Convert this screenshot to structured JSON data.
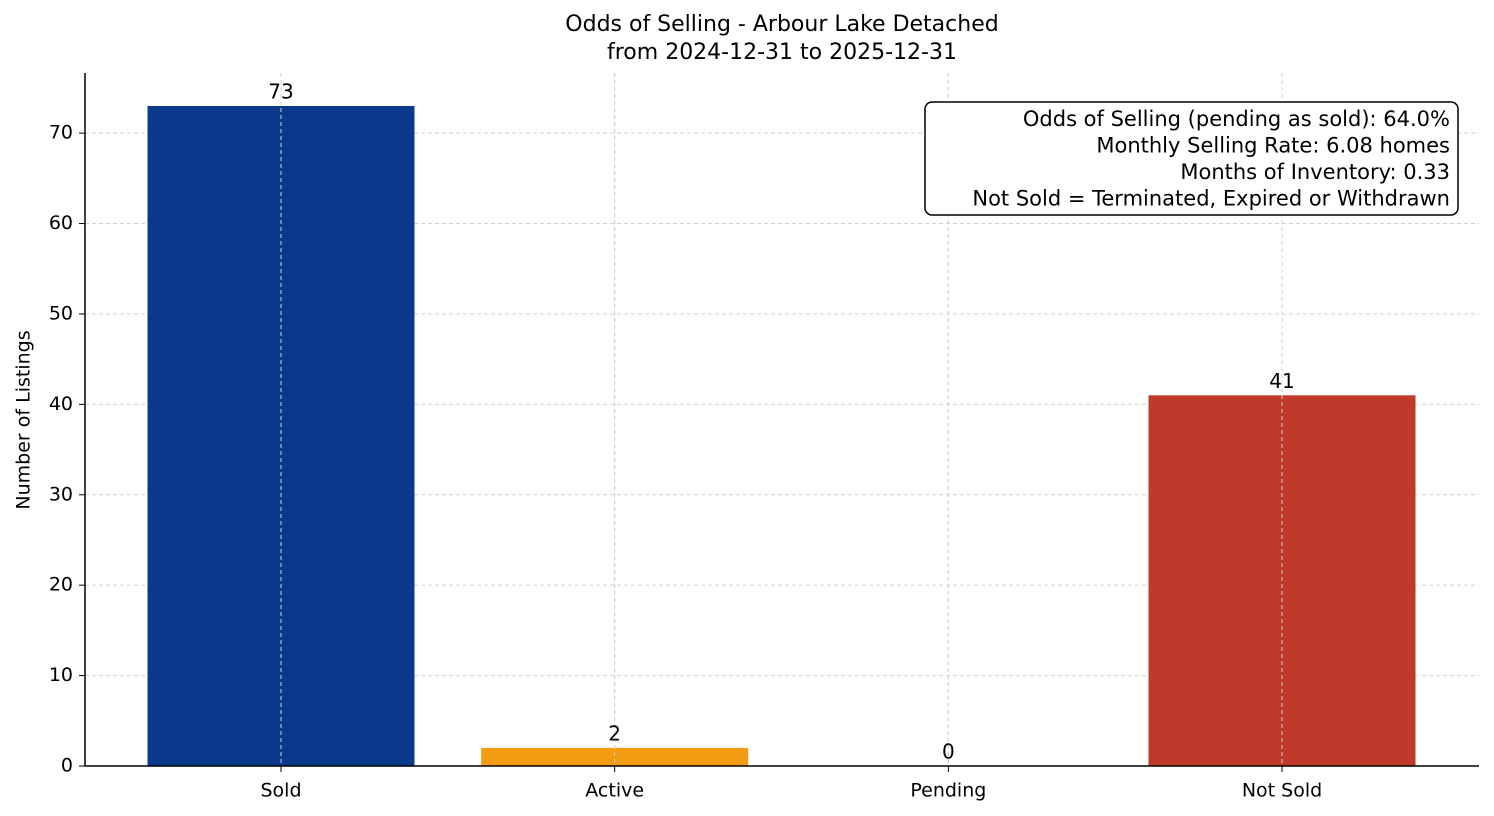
{
  "chart_data": {
    "type": "bar",
    "title": [
      "Odds of Selling - Arbour Lake Detached",
      "from 2024-12-31 to 2025-12-31"
    ],
    "y_label": "Number of Listings",
    "categories": [
      "Sold",
      "Active",
      "Pending",
      "Not Sold"
    ],
    "values": [
      73,
      2,
      0,
      41
    ],
    "colors": [
      "#0b3a8c",
      "#f39c12",
      "#27ae60",
      "#c0392b"
    ],
    "ylim": [
      0,
      76.65
    ],
    "yticks": [
      0,
      10,
      20,
      30,
      40,
      50,
      60,
      70
    ],
    "grid": true,
    "annotation": [
      "Odds of Selling (pending as sold): 64.0%",
      "Monthly Selling Rate: 6.08 homes",
      "Months of Inventory: 0.33",
      "Not Sold = Terminated, Expired or Withdrawn"
    ]
  }
}
